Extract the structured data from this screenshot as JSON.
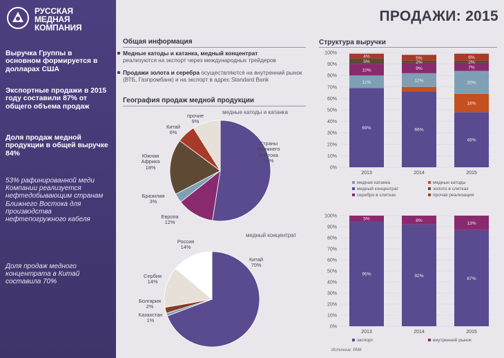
{
  "logo": {
    "text_line1": "РУССКАЯ",
    "text_line2": "МЕДНАЯ",
    "text_line3": "КОМПАНИЯ"
  },
  "page_title": "ПРОДАЖИ: 2015",
  "sidebar": {
    "block1": "Выручка Группы в основном формируется в долларах США",
    "block2": "Экспортные продажи в 2015 году составили 87% от общего объема продаж",
    "block3": "Доля продаж медной продукции в общей выручке 84%",
    "block4": "53% рафинированной меди Компании реализуется нефтедобывающим странам Ближнего Востока для производства нефтепогружного кабеля",
    "block5": "Доля продаж медного концентрата в Китай составила 70%"
  },
  "general_info": {
    "title": "Общая информация",
    "bullet1_bold": "Медные катоды и катанка, медный концентрат",
    "bullet1_text": "реализуются на экспорт через международных трейдеров",
    "bullet2_bold": "Продажи золота и серебра",
    "bullet2_text": "осуществляются на внутренний рынок (ВТБ, Газпромбанк) и на экспорт в адрес Standard Bank"
  },
  "geo_title": "География продаж медной продукции",
  "revenue_title": "Структура выручки",
  "source_note": "Источник: РМК",
  "colors": {
    "purple": "#5a4a8f",
    "steel": "#7fa0b4",
    "brown": "#7a2b1e",
    "magenta": "#8a2a6e",
    "orange": "#c4501f",
    "olive": "#5e4a34",
    "red": "#a83a2a",
    "beige": "#e6e0d6",
    "grey": "#9a9aa4",
    "light": "#c8c4d4"
  },
  "chart_data": [
    {
      "type": "pie",
      "title": "медные катоды и катанка",
      "slices": [
        {
          "label": "Страны Ближнего Востока",
          "value": 53,
          "text": "53%",
          "color": "#5a4a8f"
        },
        {
          "label": "Европа",
          "value": 12,
          "text": "12%",
          "color": "#8a2a6e"
        },
        {
          "label": "Бразилия",
          "value": 3,
          "text": "3%",
          "color": "#7fa0b4"
        },
        {
          "label": "Южная Африка",
          "value": 18,
          "text": "18%",
          "color": "#5e4a34"
        },
        {
          "label": "Китай",
          "value": 6,
          "text": "6%",
          "color": "#a83a2a"
        },
        {
          "label": "прочие",
          "value": 9,
          "text": "9%",
          "color": "#e6e0d6"
        }
      ]
    },
    {
      "type": "pie",
      "title": "медный концентрат",
      "slices": [
        {
          "label": "Китай",
          "value": 70,
          "text": "70%",
          "color": "#5a4a8f"
        },
        {
          "label": "Казахстан",
          "value": 1,
          "text": "1%",
          "color": "#7fa0b4"
        },
        {
          "label": "Болгария",
          "value": 2,
          "text": "2%",
          "color": "#8a3a2a"
        },
        {
          "label": "Сербия",
          "value": 14,
          "text": "14%",
          "color": "#e6e0d6"
        },
        {
          "label": "Россия",
          "value": 14,
          "text": "14%",
          "color": "#ffffff"
        }
      ]
    },
    {
      "type": "bar",
      "stacked": true,
      "title": "Структура выручки",
      "categories": [
        "2013",
        "2014",
        "2015"
      ],
      "ylim": [
        0,
        100
      ],
      "yticks": [
        "0%",
        "10%",
        "20%",
        "30%",
        "40%",
        "50%",
        "60%",
        "70%",
        "80%",
        "90%",
        "100%"
      ],
      "series": [
        {
          "name": "медный концентрат",
          "values": [
            69,
            66,
            48
          ],
          "labels": [
            "69%",
            "66%",
            "48%"
          ],
          "color": "#5a4a8f"
        },
        {
          "name": "медные катоды",
          "values": [
            0,
            4,
            16
          ],
          "labels": [
            "",
            "",
            "16%"
          ],
          "color": "#c4501f"
        },
        {
          "name": "медная катанка",
          "values": [
            11,
            12,
            20
          ],
          "labels": [
            "11%",
            "12%",
            "20%"
          ],
          "color": "#7fa0b4"
        },
        {
          "name": "серебро в слитках",
          "values": [
            10,
            9,
            7
          ],
          "labels": [
            "10%",
            "9%",
            "7%"
          ],
          "color": "#8a2a6e"
        },
        {
          "name": "золото в слитках",
          "values": [
            5,
            2,
            2
          ],
          "labels": [
            "5%",
            "2%",
            "2%"
          ],
          "color": "#5e4a34"
        },
        {
          "name": "прочая реализация",
          "values": [
            4,
            5,
            6
          ],
          "labels": [
            "4%",
            "5%",
            "6%"
          ],
          "color": "#a83a2a"
        }
      ],
      "legend": [
        "медная катанка",
        "медные катоды",
        "медный концентрат",
        "золото в слитках",
        "серебро в слитках",
        "прочая реализация"
      ]
    },
    {
      "type": "bar",
      "stacked": true,
      "categories": [
        "2013",
        "2014",
        "2015"
      ],
      "ylim": [
        0,
        100
      ],
      "yticks": [
        "0%",
        "10%",
        "20%",
        "30%",
        "40%",
        "50%",
        "60%",
        "70%",
        "80%",
        "90%",
        "100%"
      ],
      "series": [
        {
          "name": "экспорт",
          "values": [
            95,
            92,
            87
          ],
          "labels": [
            "95%",
            "92%",
            "87%"
          ],
          "color": "#5a4a8f"
        },
        {
          "name": "внутренний рынок",
          "values": [
            5,
            8,
            13
          ],
          "labels": [
            "5%",
            "8%",
            "13%"
          ],
          "color": "#8a2a6e"
        }
      ],
      "legend": [
        "экспорт",
        "внутренний рынок"
      ]
    }
  ]
}
